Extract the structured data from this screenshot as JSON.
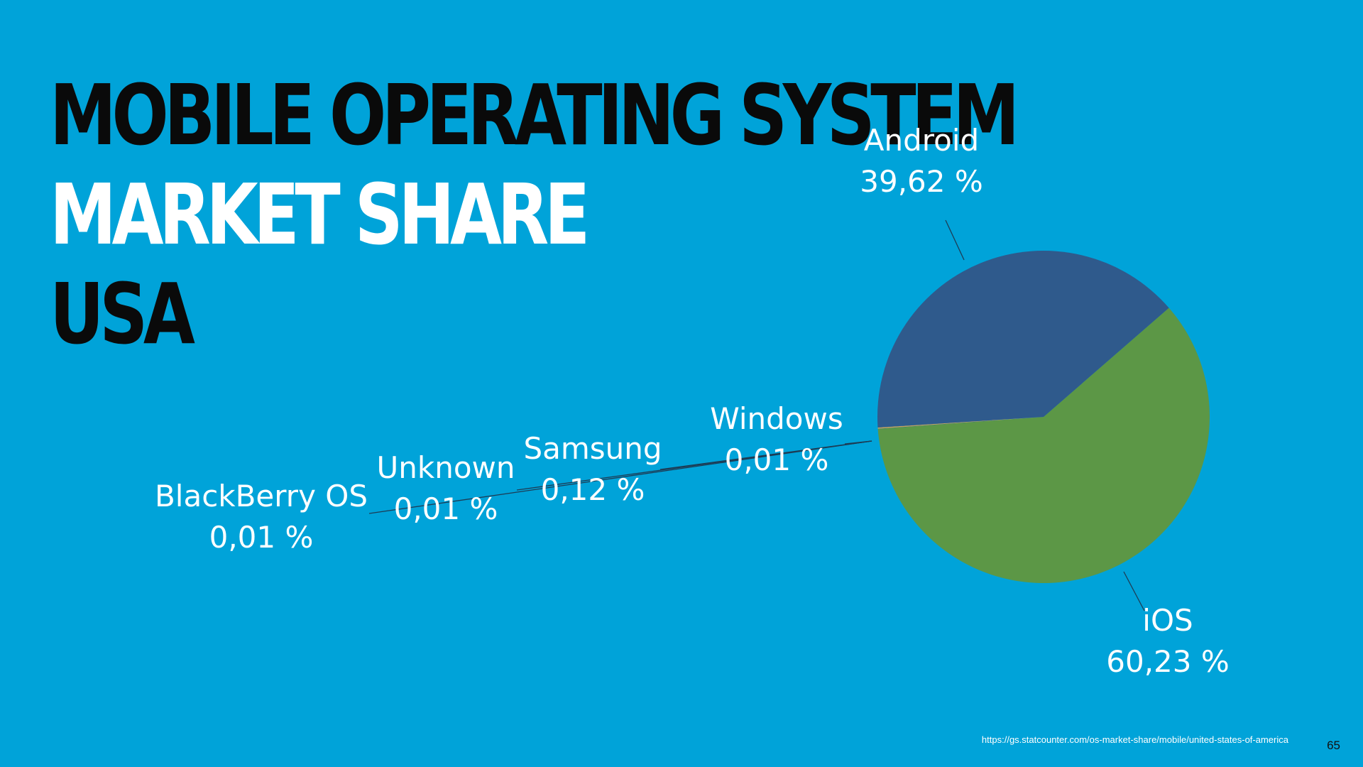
{
  "slide": {
    "title_line1": "MOBILE OPERATING SYSTEM",
    "title_line2": "MARKET SHARE",
    "title_line3": "USA",
    "source": "https://gs.statcounter.com/os-market-share/mobile/united-states-of-america",
    "page_number": "65"
  },
  "colors": {
    "background": "#00a3d9",
    "title_dark": "#0a0a0a",
    "title_light": "#ffffff"
  },
  "chart_data": {
    "type": "pie",
    "title": "",
    "start_angle_degrees": 41,
    "slices": [
      {
        "name": "iOS",
        "value": 60.23,
        "value_label": "60,23 %",
        "color": "#5c9746"
      },
      {
        "name": "BlackBerry OS",
        "value": 0.01,
        "value_label": "0,01 %",
        "color": "#2d4f7a"
      },
      {
        "name": "Unknown",
        "value": 0.01,
        "value_label": "0,01 %",
        "color": "#1e3a5a"
      },
      {
        "name": "Samsung",
        "value": 0.12,
        "value_label": "0,12 %",
        "color": "#c8a05a"
      },
      {
        "name": "Windows",
        "value": 0.01,
        "value_label": "0,01 %",
        "color": "#1e3a5a"
      },
      {
        "name": "Android",
        "value": 39.62,
        "value_label": "39,62 %",
        "color": "#2f5a8c"
      }
    ]
  }
}
